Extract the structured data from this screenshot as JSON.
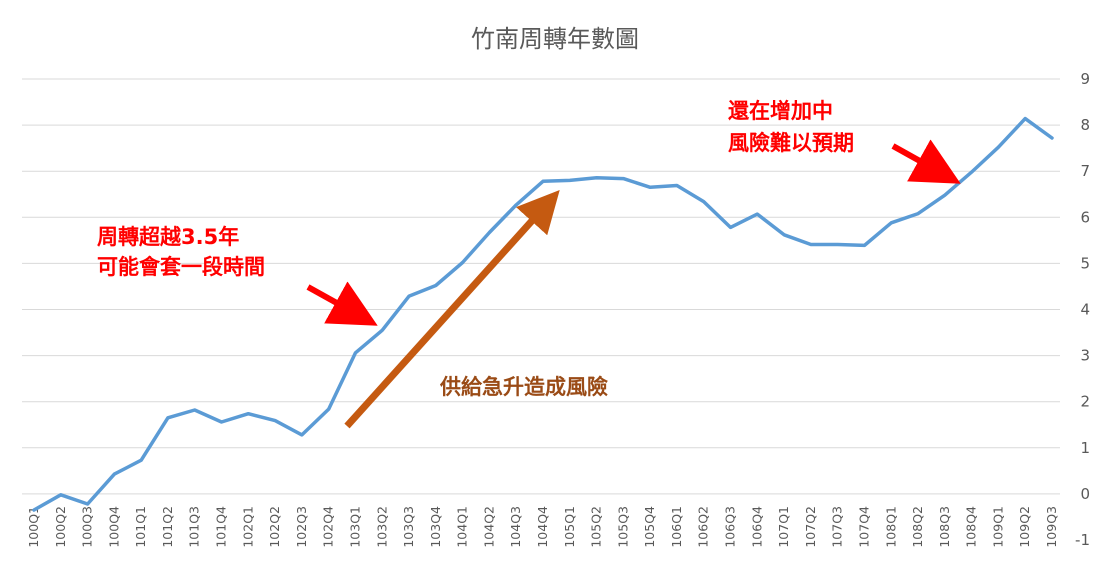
{
  "chart_data": {
    "type": "line",
    "title": "竹南周轉年數圖",
    "xlabel": "",
    "ylabel": "",
    "ylim": [
      -1,
      9
    ],
    "yticks": [
      "-1",
      "0",
      "1",
      "2",
      "3",
      "4",
      "5",
      "6",
      "7",
      "8",
      "9"
    ],
    "y_axis_side": "right",
    "grid": true,
    "legend": "none",
    "line_color": "#5b9bd5",
    "categories": [
      "100Q1",
      "100Q2",
      "100Q3",
      "100Q4",
      "101Q1",
      "101Q2",
      "101Q3",
      "101Q4",
      "102Q1",
      "102Q2",
      "102Q3",
      "102Q4",
      "103Q1",
      "103Q2",
      "103Q3",
      "103Q4",
      "104Q1",
      "104Q2",
      "104Q3",
      "104Q4",
      "105Q1",
      "105Q2",
      "105Q3",
      "105Q4",
      "106Q1",
      "106Q2",
      "106Q3",
      "106Q4",
      "107Q1",
      "107Q2",
      "107Q3",
      "107Q4",
      "108Q1",
      "108Q2",
      "108Q3",
      "108Q4",
      "109Q1",
      "109Q2",
      "109Q3"
    ],
    "values": [
      -0.35,
      -0.02,
      -0.22,
      0.43,
      0.73,
      1.65,
      1.82,
      1.56,
      1.74,
      1.59,
      1.28,
      1.84,
      3.06,
      3.55,
      4.29,
      4.52,
      5.02,
      5.67,
      6.27,
      6.78,
      6.8,
      6.86,
      6.84,
      6.65,
      6.69,
      6.34,
      5.78,
      6.07,
      5.62,
      5.41,
      5.41,
      5.39,
      5.88,
      6.08,
      6.48,
      6.98,
      7.52,
      8.14,
      7.72
    ],
    "annotations": [
      {
        "id": "supply",
        "lines": [
          "周轉超越3.5年",
          "可能會套一段時間"
        ],
        "color": "#ff0000",
        "arrow_to_category": "103Q2"
      },
      {
        "id": "rising",
        "lines": [
          "還在增加中",
          "風險難以預期"
        ],
        "color": "#ff0000",
        "arrow_to_category": "108Q3"
      },
      {
        "id": "risk",
        "lines": [
          "供給急升造成風險"
        ],
        "color": "#9a4b16",
        "arrow_from_category": "103Q1",
        "arrow_to_category": "104Q4"
      }
    ]
  }
}
